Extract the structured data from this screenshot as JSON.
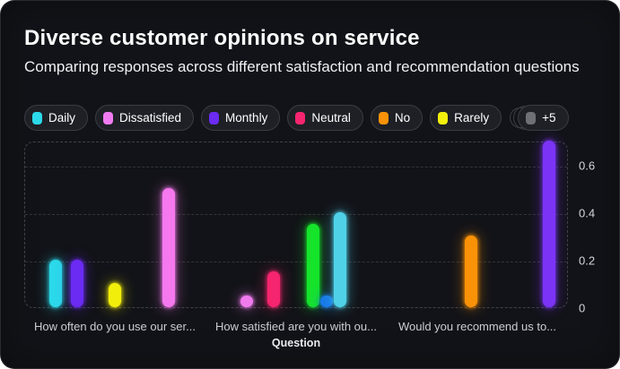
{
  "card": {
    "title": "Diverse customer opinions on service",
    "subtitle": "Comparing responses across different satisfaction and recommendation questions"
  },
  "legend": {
    "items": [
      {
        "label": "Daily",
        "color": "#2BD9EA"
      },
      {
        "label": "Dissatisfied",
        "color": "#F07BEF"
      },
      {
        "label": "Monthly",
        "color": "#6B2BF2"
      },
      {
        "label": "Neutral",
        "color": "#F5256E"
      },
      {
        "label": "No",
        "color": "#FA9207"
      },
      {
        "label": "Rarely",
        "color": "#F2EE0B"
      }
    ],
    "overflow": {
      "label": "+5",
      "color": "#6E7076"
    }
  },
  "chart_data": {
    "type": "bar",
    "title": "Diverse customer opinions on service",
    "xlabel": "Question",
    "ylabel": "",
    "ylim": [
      0,
      0.7
    ],
    "yticks": [
      0,
      0.2,
      0.4,
      0.6
    ],
    "grid": "horizontal-dashed",
    "legend_position": "top",
    "categories": [
      "How often do you use our ser...",
      "How satisfied are you with ou...",
      "Would you recommend us to..."
    ],
    "groups": [
      {
        "label": "How often do you use our ser...",
        "bars": [
          {
            "series": "Daily",
            "value": 0.2,
            "color": "#2BD9EA"
          },
          {
            "series": "Monthly",
            "value": 0.2,
            "color": "#6B2BF2"
          },
          {
            "series": "Rarely",
            "value": 0.1,
            "color": "#F2EE0B"
          },
          {
            "series": "",
            "value": 0.5,
            "color": "#F578EF"
          }
        ]
      },
      {
        "label": "How satisfied are you with ou...",
        "bars": [
          {
            "series": "Dissatisfied",
            "value": 0.05,
            "color": "#F07BEF"
          },
          {
            "series": "Neutral",
            "value": 0.15,
            "color": "#F5256E"
          },
          {
            "series": "",
            "value": 0.35,
            "color": "#16E42B"
          },
          {
            "series": "",
            "value": 0.05,
            "color": "#1779E8"
          },
          {
            "series": "",
            "value": 0.4,
            "color": "#4FD2E8"
          }
        ]
      },
      {
        "label": "Would you recommend us to...",
        "bars": [
          {
            "series": "No",
            "value": 0.3,
            "color": "#FA9207"
          },
          {
            "series": "",
            "value": 0.7,
            "color": "#7B34F5"
          }
        ]
      }
    ]
  }
}
